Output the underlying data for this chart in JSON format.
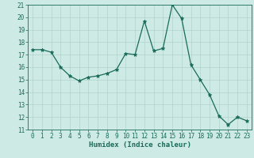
{
  "x": [
    0,
    1,
    2,
    3,
    4,
    5,
    6,
    7,
    8,
    9,
    10,
    11,
    12,
    13,
    14,
    15,
    16,
    17,
    18,
    19,
    20,
    21,
    22,
    23
  ],
  "y": [
    17.4,
    17.4,
    17.2,
    16.0,
    15.3,
    14.9,
    15.2,
    15.3,
    15.5,
    15.8,
    17.1,
    17.0,
    19.7,
    17.3,
    17.5,
    21.0,
    19.9,
    16.2,
    15.0,
    13.8,
    12.1,
    11.4,
    12.0,
    11.7
  ],
  "line_color": "#1a6b5a",
  "marker": "*",
  "marker_size": 3.5,
  "bg_color": "#cdeae4",
  "grid_color": "#afd4cd",
  "xlabel": "Humidex (Indice chaleur)",
  "ylim": [
    11,
    21
  ],
  "xlim": [
    -0.5,
    23.5
  ],
  "yticks": [
    11,
    12,
    13,
    14,
    15,
    16,
    17,
    18,
    19,
    20,
    21
  ],
  "xticks": [
    0,
    1,
    2,
    3,
    4,
    5,
    6,
    7,
    8,
    9,
    10,
    11,
    12,
    13,
    14,
    15,
    16,
    17,
    18,
    19,
    20,
    21,
    22,
    23
  ],
  "tick_fontsize": 5.5,
  "xlabel_fontsize": 6.5
}
